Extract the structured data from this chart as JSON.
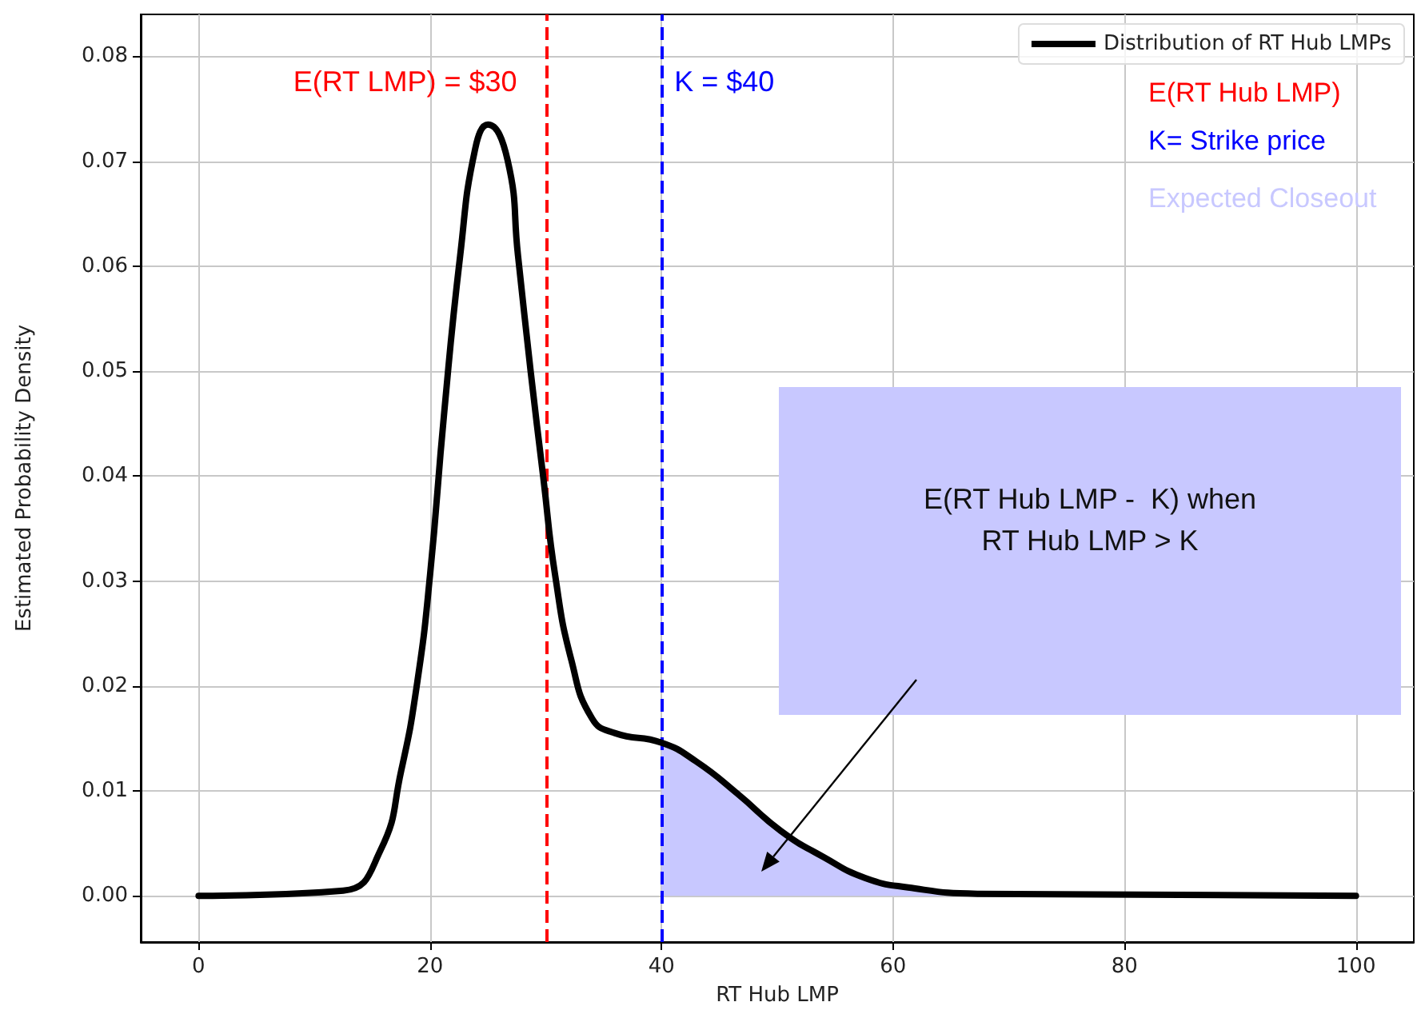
{
  "chart_data": {
    "type": "line",
    "xlabel": "RT Hub LMP",
    "ylabel": "Estimated Probability Density",
    "x": [
      0,
      12.5,
      15.7,
      17.5,
      18.9,
      20.0,
      21.2,
      22.6,
      23.9,
      25.0,
      26.7,
      27.6,
      28.7,
      29.8,
      30.8,
      32.2,
      34.0,
      36.0,
      40.0,
      43.0,
      46.6,
      50.3,
      54.0,
      57.6,
      61.3,
      67.3,
      100
    ],
    "series": [
      {
        "name": "Distribution of RT Hub LMPs",
        "color": "#000000",
        "values": [
          0,
          0.0005,
          0.0043,
          0.0119,
          0.0204,
          0.0306,
          0.0458,
          0.061,
          0.0712,
          0.0735,
          0.0701,
          0.061,
          0.0499,
          0.0397,
          0.0306,
          0.0225,
          0.0169,
          0.0155,
          0.0146,
          0.0128,
          0.0097,
          0.0062,
          0.0037,
          0.0017,
          0.0008,
          0.0002,
          0
        ]
      },
      {
        "type": "area",
        "color": "#c8c8ff",
        "x": [
          40.0,
          43.0,
          46.6,
          50.3,
          54.0,
          57.6,
          61.3,
          67.3
        ],
        "values": [
          0.0146,
          0.0128,
          0.0097,
          0.0062,
          0.0037,
          0.0017,
          0.0008,
          0.0002
        ]
      }
    ],
    "xlim": [
      -5,
      105
    ],
    "xticks": [
      0,
      20,
      40,
      60,
      80,
      100
    ],
    "ylim": [
      -0.0044,
      0.084
    ],
    "yticks": [
      {
        "value": 0,
        "label": "0.00"
      },
      {
        "value": 0.01,
        "label": "0.01"
      },
      {
        "value": 0.02,
        "label": "0.02"
      },
      {
        "value": 0.03,
        "label": "0.03"
      },
      {
        "value": 0.04,
        "label": "0.04"
      },
      {
        "value": 0.05,
        "label": "0.05"
      },
      {
        "value": 0.06,
        "label": "0.06"
      },
      {
        "value": 0.07,
        "label": "0.07"
      },
      {
        "value": 0.08,
        "label": "0.08"
      }
    ],
    "ref_lines": [
      {
        "axis": "x",
        "value": 30,
        "label": "E(RT LMP) = $30",
        "color": "#ff0000",
        "line_style": "dashed"
      },
      {
        "axis": "x",
        "value": 40,
        "label": "K = $40",
        "color": "#0000ff",
        "line_style": "dashed"
      }
    ],
    "annotations": [
      "E(RT Hub LMP)",
      "K= Strike price",
      "Expected Closeout",
      "E(RT Hub LMP -  K) when\nRT Hub LMP > K"
    ],
    "grid": true,
    "legend": "top right",
    "marker": "none",
    "line_style": "solid"
  }
}
